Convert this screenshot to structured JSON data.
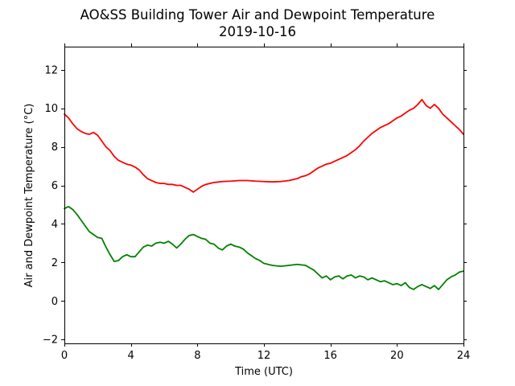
{
  "chart_data": {
    "type": "line",
    "title": "AO&SS Building Tower Air and Dewpoint Temperature",
    "subtitle": "2019-10-16",
    "xlabel": "Time (UTC)",
    "ylabel": "Air and Dewpoint Temperature (°C)",
    "xlim": [
      0,
      24
    ],
    "ylim": [
      -2.2,
      13.2
    ],
    "xticks": [
      0,
      4,
      8,
      12,
      16,
      20,
      24
    ],
    "yticks": [
      -2,
      0,
      2,
      4,
      6,
      8,
      10,
      12
    ],
    "grid": false,
    "series": [
      {
        "color": "#ff0000",
        "x": [
          0,
          0.25,
          0.5,
          0.75,
          1.0,
          1.25,
          1.5,
          1.75,
          2.0,
          2.25,
          2.5,
          2.75,
          3.0,
          3.25,
          3.5,
          3.75,
          4.0,
          4.25,
          4.5,
          4.75,
          5.0,
          5.25,
          5.5,
          5.75,
          6.0,
          6.25,
          6.5,
          6.75,
          7.0,
          7.25,
          7.5,
          7.75,
          8.0,
          8.25,
          8.5,
          8.75,
          9.0,
          9.5,
          10.0,
          10.5,
          11.0,
          11.5,
          12.0,
          12.5,
          13.0,
          13.5,
          14.0,
          14.25,
          14.5,
          14.75,
          15.0,
          15.25,
          15.5,
          15.75,
          16.0,
          16.25,
          16.5,
          16.75,
          17.0,
          17.25,
          17.5,
          17.75,
          18.0,
          18.25,
          18.5,
          18.75,
          19.0,
          19.25,
          19.5,
          19.75,
          20.0,
          20.25,
          20.5,
          20.75,
          21.0,
          21.25,
          21.5,
          21.75,
          22.0,
          22.25,
          22.5,
          22.75,
          23.0,
          23.25,
          23.5,
          23.75,
          24.0
        ],
        "y": [
          9.7,
          9.5,
          9.2,
          8.95,
          8.8,
          8.7,
          8.65,
          8.75,
          8.6,
          8.3,
          8.0,
          7.8,
          7.5,
          7.3,
          7.2,
          7.1,
          7.05,
          6.95,
          6.8,
          6.55,
          6.35,
          6.25,
          6.15,
          6.1,
          6.1,
          6.05,
          6.05,
          6.0,
          6.0,
          5.9,
          5.8,
          5.65,
          5.8,
          5.95,
          6.05,
          6.1,
          6.15,
          6.2,
          6.22,
          6.25,
          6.25,
          6.22,
          6.2,
          6.18,
          6.2,
          6.25,
          6.35,
          6.45,
          6.5,
          6.6,
          6.75,
          6.9,
          7.0,
          7.1,
          7.15,
          7.25,
          7.35,
          7.45,
          7.55,
          7.7,
          7.85,
          8.05,
          8.3,
          8.5,
          8.7,
          8.85,
          9.0,
          9.1,
          9.2,
          9.35,
          9.5,
          9.6,
          9.75,
          9.9,
          10.0,
          10.2,
          10.45,
          10.15,
          10.0,
          10.2,
          10.0,
          9.7,
          9.5,
          9.3,
          9.1,
          8.9,
          8.65
        ]
      },
      {
        "color": "#008000",
        "x": [
          0,
          0.25,
          0.5,
          0.75,
          1.0,
          1.25,
          1.5,
          1.75,
          2.0,
          2.25,
          2.5,
          2.75,
          3.0,
          3.25,
          3.5,
          3.75,
          4.0,
          4.25,
          4.5,
          4.75,
          5.0,
          5.25,
          5.5,
          5.75,
          6.0,
          6.25,
          6.5,
          6.75,
          7.0,
          7.25,
          7.5,
          7.75,
          8.0,
          8.25,
          8.5,
          8.75,
          9.0,
          9.25,
          9.5,
          9.75,
          10.0,
          10.25,
          10.5,
          10.75,
          11.0,
          11.25,
          11.5,
          11.75,
          12.0,
          12.5,
          13.0,
          13.5,
          14.0,
          14.5,
          15.0,
          15.25,
          15.5,
          15.75,
          16.0,
          16.25,
          16.5,
          16.75,
          17.0,
          17.25,
          17.5,
          17.75,
          18.0,
          18.25,
          18.5,
          18.75,
          19.0,
          19.25,
          19.5,
          19.75,
          20.0,
          20.25,
          20.5,
          20.75,
          21.0,
          21.25,
          21.5,
          21.75,
          22.0,
          22.25,
          22.5,
          22.75,
          23.0,
          23.25,
          23.5,
          23.75,
          24.0
        ],
        "y": [
          4.8,
          4.9,
          4.75,
          4.5,
          4.2,
          3.9,
          3.6,
          3.45,
          3.3,
          3.25,
          2.8,
          2.4,
          2.05,
          2.1,
          2.3,
          2.4,
          2.3,
          2.3,
          2.55,
          2.8,
          2.9,
          2.85,
          3.0,
          3.05,
          3.0,
          3.1,
          2.95,
          2.75,
          2.95,
          3.2,
          3.4,
          3.45,
          3.35,
          3.25,
          3.2,
          3.0,
          2.95,
          2.75,
          2.65,
          2.85,
          2.95,
          2.85,
          2.8,
          2.7,
          2.5,
          2.35,
          2.2,
          2.1,
          1.95,
          1.85,
          1.8,
          1.85,
          1.9,
          1.85,
          1.6,
          1.4,
          1.2,
          1.3,
          1.1,
          1.25,
          1.3,
          1.15,
          1.3,
          1.35,
          1.2,
          1.3,
          1.25,
          1.1,
          1.2,
          1.1,
          1.0,
          1.05,
          0.95,
          0.85,
          0.9,
          0.8,
          0.95,
          0.7,
          0.6,
          0.75,
          0.85,
          0.75,
          0.65,
          0.8,
          0.6,
          0.85,
          1.1,
          1.25,
          1.35,
          1.5,
          1.55
        ]
      }
    ]
  }
}
